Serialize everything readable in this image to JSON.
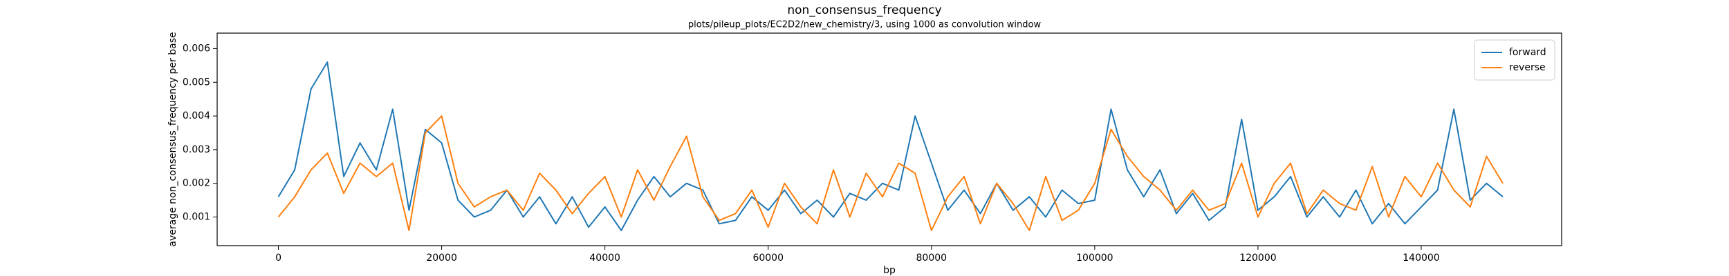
{
  "chart_data": {
    "type": "line",
    "title": "non_consensus_frequency",
    "subtitle": "plots/pileup_plots/EC2D2/new_chemistry/3, using 1000 as convolution window",
    "x_label": "bp",
    "y_label": "average non_consensus_frequency per base",
    "x": [
      0,
      2000,
      4000,
      6000,
      8000,
      10000,
      12000,
      14000,
      16000,
      18000,
      20000,
      22000,
      24000,
      26000,
      28000,
      30000,
      32000,
      34000,
      36000,
      38000,
      40000,
      42000,
      44000,
      46000,
      48000,
      50000,
      52000,
      54000,
      56000,
      58000,
      60000,
      62000,
      64000,
      66000,
      68000,
      70000,
      72000,
      74000,
      76000,
      78000,
      80000,
      82000,
      84000,
      86000,
      88000,
      90000,
      92000,
      94000,
      96000,
      98000,
      100000,
      102000,
      104000,
      106000,
      108000,
      110000,
      112000,
      114000,
      116000,
      118000,
      120000,
      122000,
      124000,
      126000,
      128000,
      130000,
      132000,
      134000,
      136000,
      138000,
      140000,
      142000,
      144000,
      146000,
      148000,
      150000
    ],
    "series": [
      {
        "name": "forward",
        "color": "#1f77b4",
        "values": [
          0.0016,
          0.0024,
          0.0048,
          0.0056,
          0.0022,
          0.0032,
          0.0024,
          0.0042,
          0.0012,
          0.0036,
          0.0032,
          0.0015,
          0.001,
          0.0012,
          0.0018,
          0.001,
          0.0016,
          0.0008,
          0.0016,
          0.0007,
          0.0013,
          0.0006,
          0.0015,
          0.0022,
          0.0016,
          0.002,
          0.0018,
          0.0008,
          0.0009,
          0.0016,
          0.0012,
          0.0018,
          0.0011,
          0.0015,
          0.001,
          0.0017,
          0.0015,
          0.002,
          0.0018,
          0.004,
          0.0026,
          0.0012,
          0.0018,
          0.0011,
          0.002,
          0.0012,
          0.0016,
          0.001,
          0.0018,
          0.0014,
          0.0015,
          0.0042,
          0.0024,
          0.0016,
          0.0024,
          0.0011,
          0.0017,
          0.0009,
          0.0013,
          0.0039,
          0.0012,
          0.0016,
          0.0022,
          0.001,
          0.0016,
          0.001,
          0.0018,
          0.0008,
          0.0014,
          0.0008,
          0.0013,
          0.0018,
          0.0042,
          0.0015,
          0.002,
          0.0016
        ]
      },
      {
        "name": "reverse",
        "color": "#ff7f0e",
        "values": [
          0.001,
          0.0016,
          0.0024,
          0.0029,
          0.0017,
          0.0026,
          0.0022,
          0.0026,
          0.0006,
          0.0035,
          0.004,
          0.002,
          0.0013,
          0.0016,
          0.0018,
          0.0012,
          0.0023,
          0.0018,
          0.0011,
          0.0017,
          0.0022,
          0.001,
          0.0024,
          0.0015,
          0.0025,
          0.0034,
          0.0016,
          0.0009,
          0.0011,
          0.0018,
          0.0007,
          0.002,
          0.0013,
          0.0008,
          0.0024,
          0.001,
          0.0023,
          0.0016,
          0.0026,
          0.0023,
          0.0006,
          0.0016,
          0.0022,
          0.0008,
          0.002,
          0.0014,
          0.0006,
          0.0022,
          0.0009,
          0.0012,
          0.002,
          0.0036,
          0.0028,
          0.0022,
          0.0018,
          0.0012,
          0.0018,
          0.0012,
          0.0014,
          0.0026,
          0.001,
          0.002,
          0.0026,
          0.0011,
          0.0018,
          0.0014,
          0.0012,
          0.0025,
          0.001,
          0.0022,
          0.0016,
          0.0026,
          0.0018,
          0.0013,
          0.0028,
          0.002
        ]
      }
    ],
    "xlim": [
      -7500,
      157200
    ],
    "ylim": [
      0.00015,
      0.00646
    ],
    "xticks": [
      0,
      20000,
      40000,
      60000,
      80000,
      100000,
      120000,
      140000
    ],
    "yticks": [
      0.001,
      0.002,
      0.003,
      0.004,
      0.005,
      0.006
    ],
    "legend": "upper right",
    "grid": false
  }
}
